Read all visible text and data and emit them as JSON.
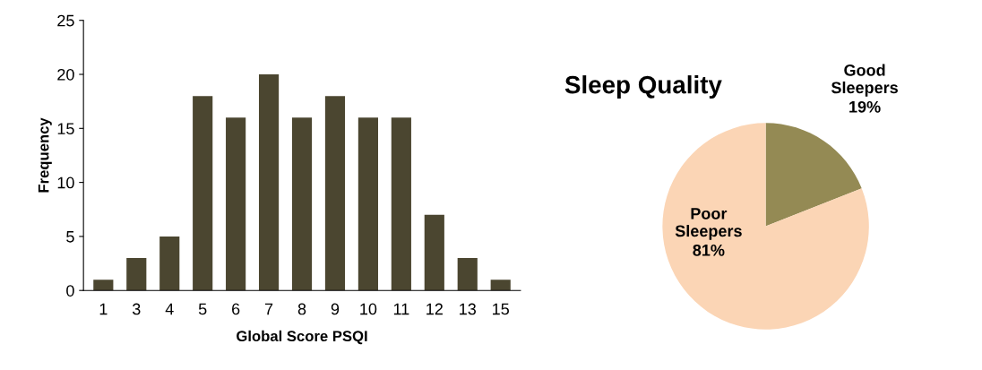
{
  "chart_data": [
    {
      "type": "bar",
      "xlabel": "Global Score PSQI",
      "ylabel": "Frequency",
      "categories": [
        "1",
        "3",
        "4",
        "5",
        "6",
        "7",
        "8",
        "9",
        "10",
        "11",
        "12",
        "13",
        "15"
      ],
      "values": [
        1,
        3,
        5,
        18,
        16,
        20,
        16,
        18,
        16,
        16,
        7,
        3,
        1
      ],
      "color": "#4b4630",
      "ylim": [
        0,
        25
      ],
      "yticks": [
        0,
        5,
        10,
        15,
        20,
        25
      ],
      "grid": false,
      "legend": false
    },
    {
      "type": "pie",
      "title": "Sleep Quality",
      "categories": [
        "Good Sleepers",
        "Poor Sleepers"
      ],
      "values": [
        19,
        81
      ],
      "colors": [
        "#948a54",
        "#fbd5b5"
      ],
      "value_labels": [
        "19%",
        "81%"
      ],
      "legend": false
    }
  ]
}
